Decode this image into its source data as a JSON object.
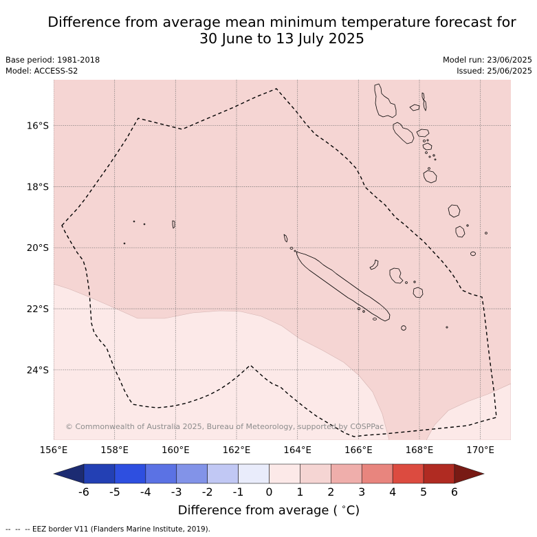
{
  "title": {
    "line1": "Difference from average mean minimum temperature forecast for",
    "line2": "30 June to 13 July 2025"
  },
  "meta": {
    "base_period": "Base period: 1981-2018",
    "model": "Model: ACCESS-S2",
    "model_run": "Model run: 23/06/2025",
    "issued": "Issued: 25/06/2025"
  },
  "map": {
    "extent": {
      "lon_min": 156,
      "lon_max": 171,
      "lat_top": -14.5,
      "lat_bottom": -26.3
    },
    "gridlines": true,
    "lon_ticks": [
      {
        "value": 156,
        "label": "156°E"
      },
      {
        "value": 158,
        "label": "158°E"
      },
      {
        "value": 160,
        "label": "160°E"
      },
      {
        "value": 162,
        "label": "162°E"
      },
      {
        "value": 164,
        "label": "164°E"
      },
      {
        "value": 166,
        "label": "166°E"
      },
      {
        "value": 168,
        "label": "168°E"
      },
      {
        "value": 170,
        "label": "170°E"
      }
    ],
    "lat_ticks": [
      {
        "value": -16,
        "label": "16°S"
      },
      {
        "value": -18,
        "label": "18°S"
      },
      {
        "value": -20,
        "label": "20°S"
      },
      {
        "value": -22,
        "label": "22°S"
      },
      {
        "value": -24,
        "label": "24°S"
      }
    ],
    "anomaly_regions": [
      {
        "min": 1,
        "max": 2
      },
      {
        "min": 0,
        "max": 1
      },
      {
        "min": 0,
        "max": 1
      }
    ],
    "copyright": "© Commonwealth of Australia 2025, Bureau of Meteorology, supported by COSPPac"
  },
  "colorbar": {
    "ticks": [
      {
        "value": -6,
        "label": "-6"
      },
      {
        "value": -5,
        "label": "-5"
      },
      {
        "value": -4,
        "label": "-4"
      },
      {
        "value": -3,
        "label": "-3"
      },
      {
        "value": -2,
        "label": "-2"
      },
      {
        "value": -1,
        "label": "-1"
      },
      {
        "value": 0,
        "label": "0"
      },
      {
        "value": 1,
        "label": "1"
      },
      {
        "value": 2,
        "label": "2"
      },
      {
        "value": 3,
        "label": "3"
      },
      {
        "value": 4,
        "label": "4"
      },
      {
        "value": 5,
        "label": "5"
      },
      {
        "value": 6,
        "label": "6"
      }
    ],
    "bins": [
      {
        "min": null,
        "max": -6,
        "color": "#1c2b72"
      },
      {
        "min": -6,
        "max": -5,
        "color": "#2340b4"
      },
      {
        "min": -5,
        "max": -4,
        "color": "#2e4fe0"
      },
      {
        "min": -4,
        "max": -3,
        "color": "#5b72e4"
      },
      {
        "min": -3,
        "max": -2,
        "color": "#8293e8"
      },
      {
        "min": -2,
        "max": -1,
        "color": "#c1c8f4"
      },
      {
        "min": -1,
        "max": 0,
        "color": "#e9ecfb"
      },
      {
        "min": 0,
        "max": 1,
        "color": "#fce9e8"
      },
      {
        "min": 1,
        "max": 2,
        "color": "#f5d5d3"
      },
      {
        "min": 2,
        "max": 3,
        "color": "#efaeab"
      },
      {
        "min": 3,
        "max": 4,
        "color": "#e8857e"
      },
      {
        "min": 4,
        "max": 5,
        "color": "#dc4b40"
      },
      {
        "min": 5,
        "max": 6,
        "color": "#b02b22"
      },
      {
        "min": 6,
        "max": null,
        "color": "#781a14"
      }
    ],
    "label_prefix": "Difference from average (",
    "label_degree": "∘",
    "label_suffix": "C)"
  },
  "footer": {
    "eez_legend": "--  --  -- EEZ border V11 (Flanders Marine Institute, 2019)."
  }
}
